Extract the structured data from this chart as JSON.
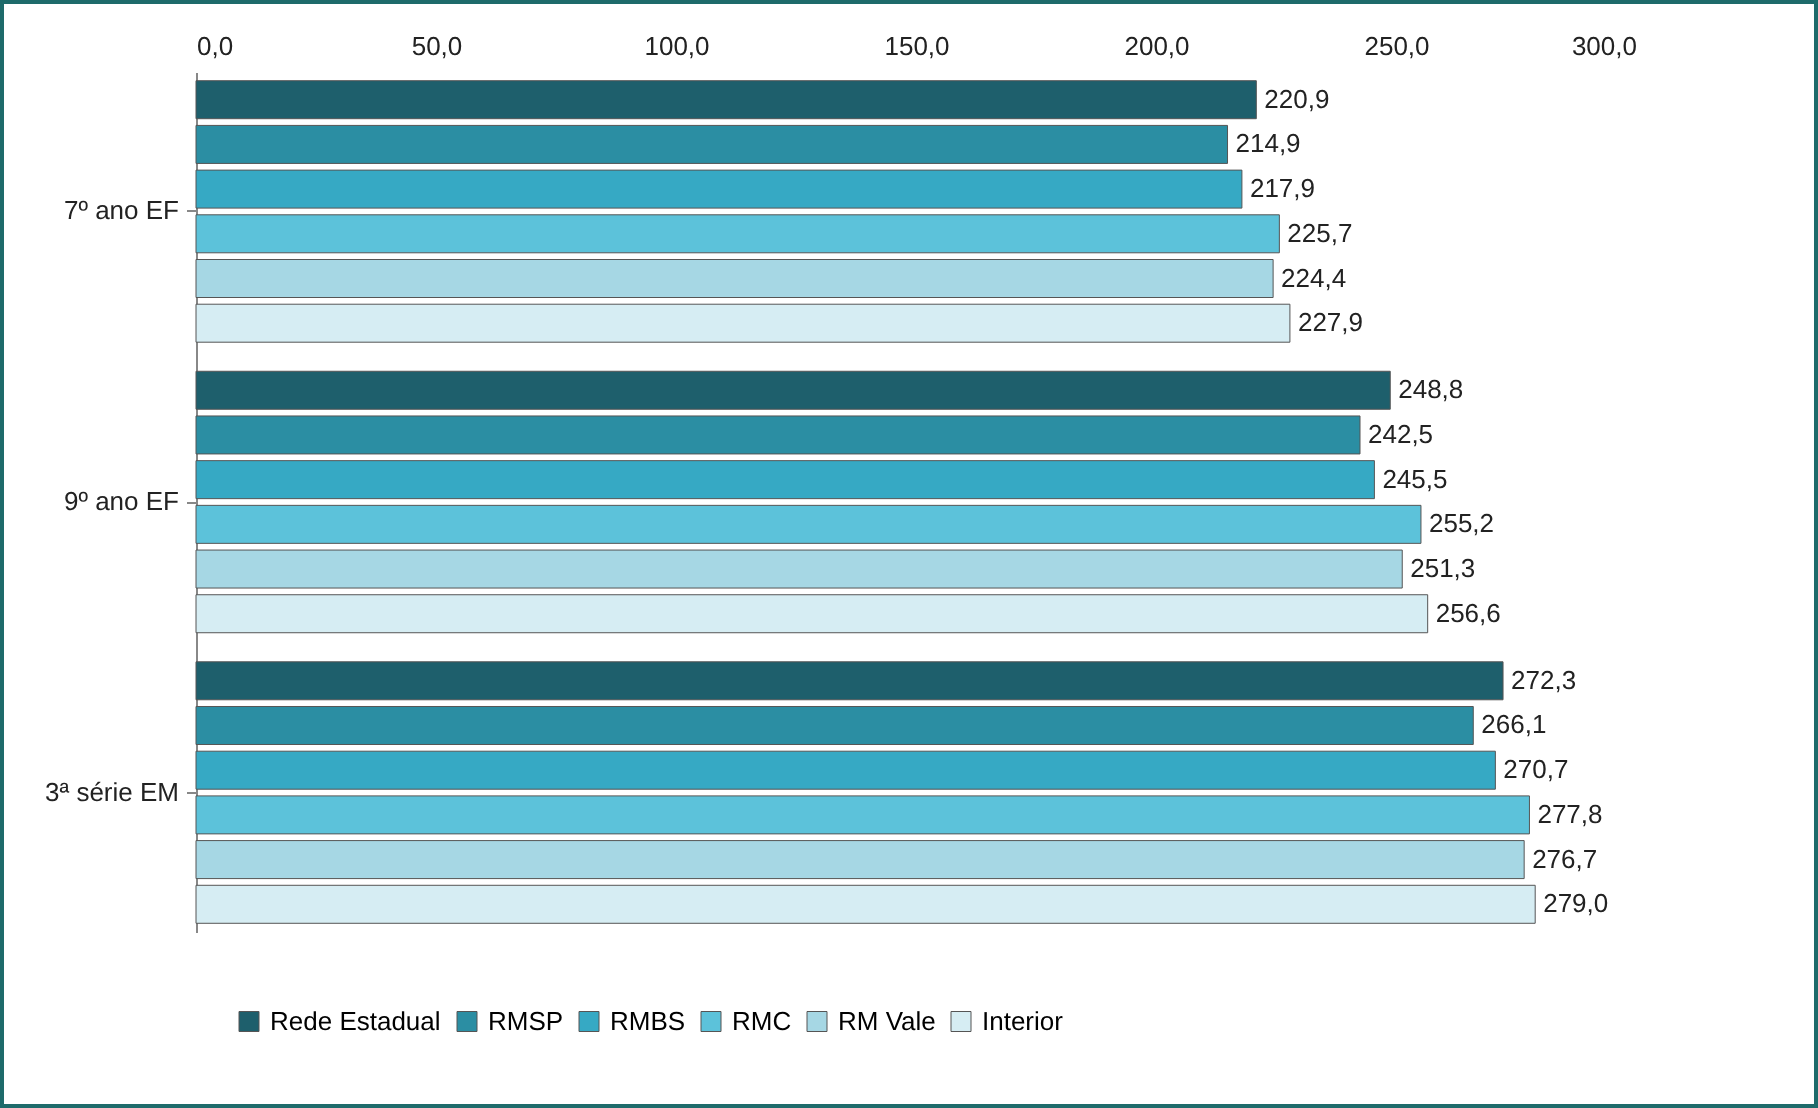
{
  "chart_data": {
    "type": "bar",
    "orientation": "horizontal",
    "categories": [
      "7º ano EF",
      "9º ano EF",
      "3ª série EM"
    ],
    "xlim": [
      0,
      300
    ],
    "xticks": [
      {
        "value": 0,
        "label": "0,0"
      },
      {
        "value": 50,
        "label": "50,0"
      },
      {
        "value": 100,
        "label": "100,0"
      },
      {
        "value": 150,
        "label": "150,0"
      },
      {
        "value": 200,
        "label": "200,0"
      },
      {
        "value": 250,
        "label": "250,0"
      },
      {
        "value": 300,
        "label": "300,0"
      }
    ],
    "series": [
      {
        "name": "Rede Estadual",
        "color": "#1e5f6c",
        "values": [
          220.9,
          248.8,
          272.3
        ],
        "value_labels": [
          "220,9",
          "248,8",
          "272,3"
        ]
      },
      {
        "name": "RMSP",
        "color": "#2b8ea3",
        "values": [
          214.9,
          242.5,
          266.1
        ],
        "value_labels": [
          "214,9",
          "242,5",
          "266,1"
        ]
      },
      {
        "name": "RMBS",
        "color": "#36a9c4",
        "values": [
          217.9,
          245.5,
          270.7
        ],
        "value_labels": [
          "217,9",
          "245,5",
          "270,7"
        ]
      },
      {
        "name": "RMC",
        "color": "#5cc2da",
        "values": [
          225.7,
          255.2,
          277.8
        ],
        "value_labels": [
          "225,7",
          "255,2",
          "277,8"
        ]
      },
      {
        "name": "RM Vale",
        "color": "#a6d7e4",
        "values": [
          224.4,
          251.3,
          276.7
        ],
        "value_labels": [
          "224,4",
          "251,3",
          "276,7"
        ]
      },
      {
        "name": "Interior",
        "color": "#d6edf3",
        "values": [
          227.9,
          256.6,
          279.0
        ],
        "value_labels": [
          "227,9",
          "256,6",
          "279,0"
        ]
      }
    ],
    "legend": "bottom",
    "grid": false
  }
}
